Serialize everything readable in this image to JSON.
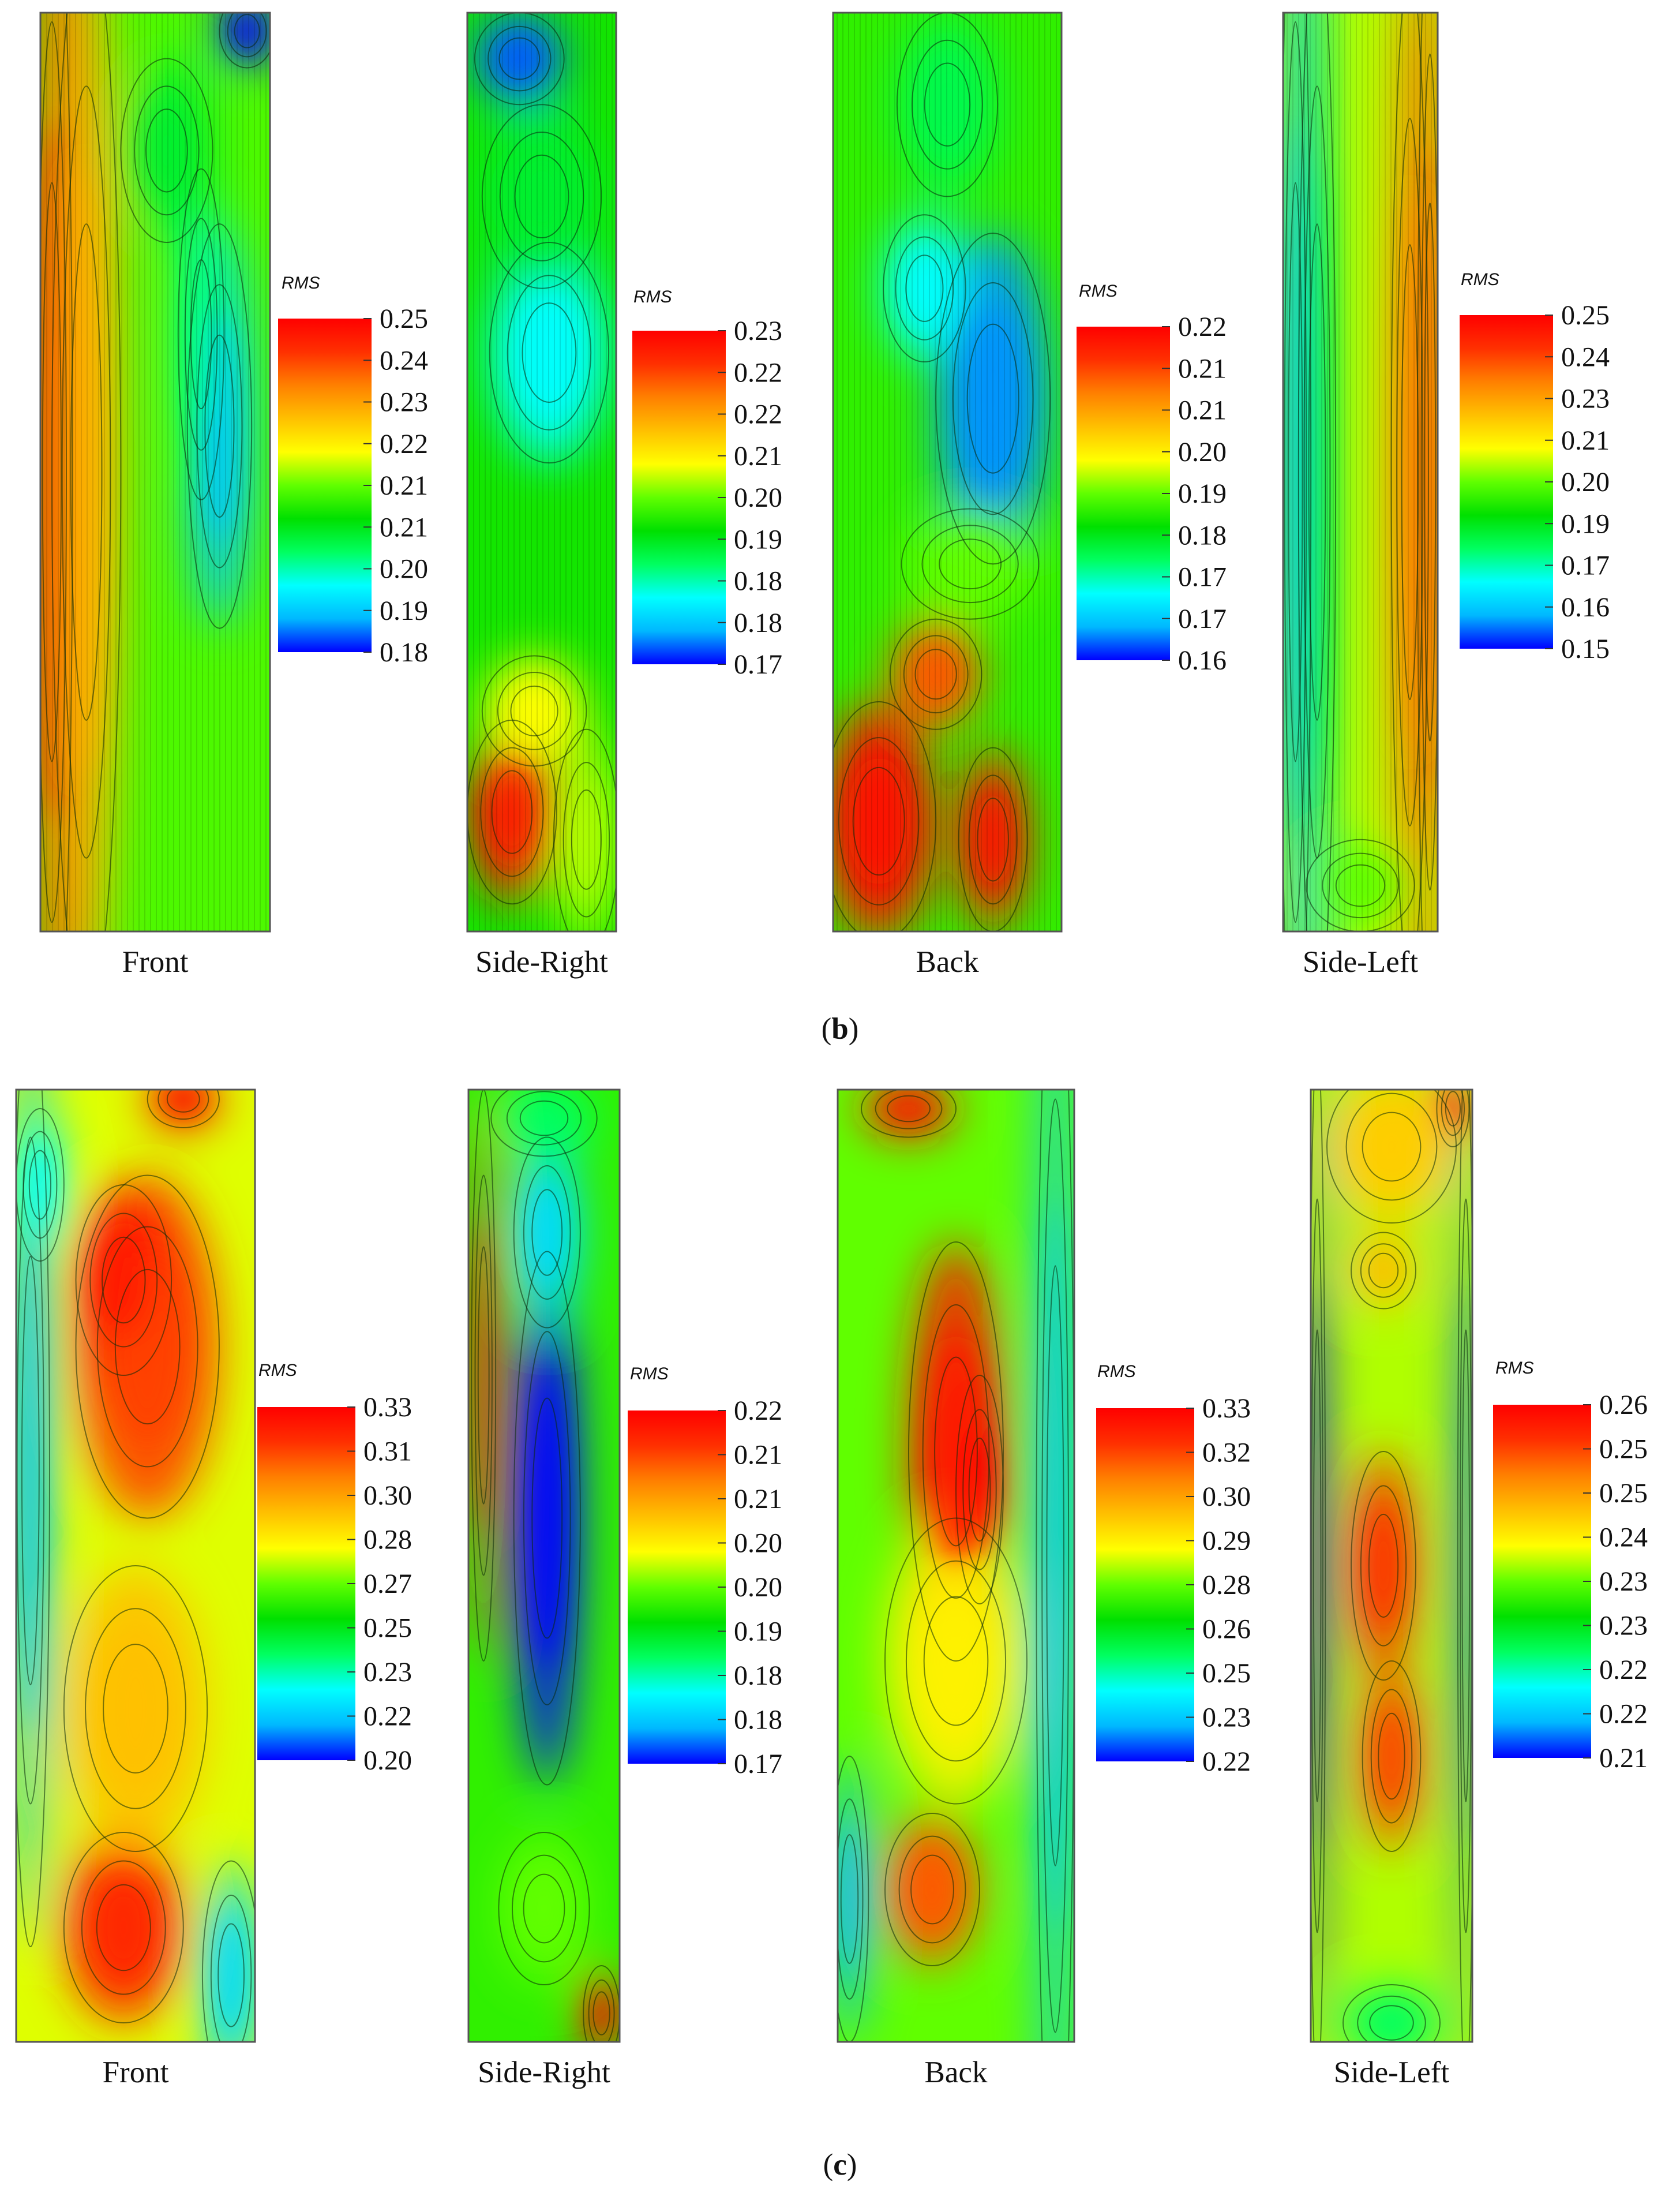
{
  "figure": {
    "colormap": [
      "#0000ff",
      "#00b8ff",
      "#00ffff",
      "#00ff60",
      "#00e000",
      "#60ff00",
      "#ffff00",
      "#ffc000",
      "#ff8000",
      "#ff3000",
      "#ff0000"
    ]
  },
  "chart_data": [
    {
      "type": "heatmap",
      "panel": "b",
      "view": "Front",
      "legend_title": "RMS",
      "colorbar_ticks": [
        "0.25",
        "0.24",
        "0.23",
        "0.22",
        "0.21",
        "0.21",
        "0.20",
        "0.19",
        "0.18"
      ],
      "value_range": [
        0.18,
        0.25
      ]
    },
    {
      "type": "heatmap",
      "panel": "b",
      "view": "Side-Right",
      "legend_title": "RMS",
      "colorbar_ticks": [
        "0.23",
        "0.22",
        "0.22",
        "0.21",
        "0.20",
        "0.19",
        "0.18",
        "0.18",
        "0.17"
      ],
      "value_range": [
        0.17,
        0.23
      ]
    },
    {
      "type": "heatmap",
      "panel": "b",
      "view": "Back",
      "legend_title": "RMS",
      "colorbar_ticks": [
        "0.22",
        "0.21",
        "0.21",
        "0.20",
        "0.19",
        "0.18",
        "0.17",
        "0.17",
        "0.16"
      ],
      "value_range": [
        0.16,
        0.22
      ]
    },
    {
      "type": "heatmap",
      "panel": "b",
      "view": "Side-Left",
      "legend_title": "RMS",
      "colorbar_ticks": [
        "0.25",
        "0.24",
        "0.23",
        "0.21",
        "0.20",
        "0.19",
        "0.17",
        "0.16",
        "0.15"
      ],
      "value_range": [
        0.15,
        0.25
      ]
    },
    {
      "type": "heatmap",
      "panel": "c",
      "view": "Front",
      "legend_title": "RMS",
      "colorbar_ticks": [
        "0.33",
        "0.31",
        "0.30",
        "0.28",
        "0.27",
        "0.25",
        "0.23",
        "0.22",
        "0.20"
      ],
      "value_range": [
        0.2,
        0.33
      ]
    },
    {
      "type": "heatmap",
      "panel": "c",
      "view": "Side-Right",
      "legend_title": "RMS",
      "colorbar_ticks": [
        "0.22",
        "0.21",
        "0.21",
        "0.20",
        "0.20",
        "0.19",
        "0.18",
        "0.18",
        "0.17"
      ],
      "value_range": [
        0.17,
        0.22
      ]
    },
    {
      "type": "heatmap",
      "panel": "c",
      "view": "Back",
      "legend_title": "RMS",
      "colorbar_ticks": [
        "0.33",
        "0.32",
        "0.30",
        "0.29",
        "0.28",
        "0.26",
        "0.25",
        "0.23",
        "0.22"
      ],
      "value_range": [
        0.22,
        0.33
      ]
    },
    {
      "type": "heatmap",
      "panel": "c",
      "view": "Side-Left",
      "legend_title": "RMS",
      "colorbar_ticks": [
        "0.26",
        "0.25",
        "0.25",
        "0.24",
        "0.23",
        "0.23",
        "0.22",
        "0.22",
        "0.21"
      ],
      "value_range": [
        0.21,
        0.26
      ]
    }
  ],
  "panel_labels": {
    "b": "b",
    "c": "c"
  }
}
